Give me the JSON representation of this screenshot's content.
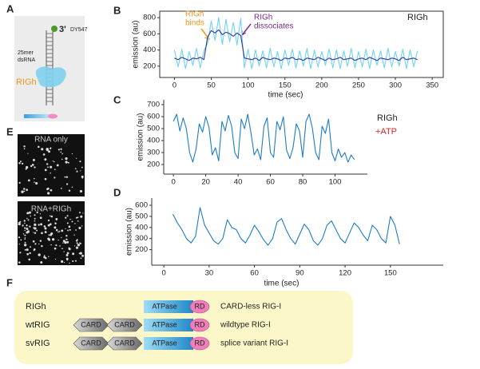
{
  "panel_labels": [
    "A",
    "B",
    "C",
    "D",
    "E",
    "F"
  ],
  "diagram_a": {
    "end": "3'",
    "dye": "DY547",
    "length": "25mer",
    "molecule": "dsRNA",
    "protein": "RIGh"
  },
  "images_e": [
    "RNA only",
    "RNA+RIGh"
  ],
  "constructs_f": [
    {
      "name": "RIGh",
      "domains": [
        "ATPase",
        "RD"
      ],
      "description": "CARD-less RIG-I"
    },
    {
      "name": "wtRIG",
      "domains": [
        "CARD",
        "CARD",
        "ATPase",
        "RD"
      ],
      "description": "wildtype RIG-I"
    },
    {
      "name": "svRIG",
      "domains": [
        "CARD",
        "CARD",
        "ATPase",
        "RD"
      ],
      "description": "splice variant RIG-I"
    }
  ],
  "chart_data": [
    {
      "type": "line",
      "xlabel": "time (sec)",
      "ylabel": "emission (au)",
      "xlim": [
        -20,
        365
      ],
      "ylim": [
        60,
        880
      ],
      "xticks": [
        0,
        50,
        100,
        150,
        200,
        250,
        300,
        350
      ],
      "yticks": [
        200,
        400,
        600,
        800
      ],
      "annotations": [
        {
          "text": [
            "RIGh",
            "binds"
          ],
          "color": "#f0961e"
        },
        {
          "text": [
            "RIGh",
            "dissociates"
          ],
          "color": "#7d2a8c"
        },
        {
          "text": [
            "RIGh"
          ],
          "color": "#222222"
        }
      ],
      "x": [
        0,
        5,
        10,
        15,
        20,
        25,
        30,
        35,
        40,
        45,
        50,
        55,
        60,
        65,
        70,
        75,
        80,
        85,
        90,
        95,
        100,
        105,
        110,
        115,
        120,
        125,
        130,
        135,
        140,
        145,
        150,
        155,
        160,
        165,
        170,
        175,
        180,
        185,
        190,
        195,
        200,
        205,
        210,
        215,
        220,
        225,
        230,
        235,
        240,
        245,
        250,
        255,
        260,
        265,
        270,
        275,
        280,
        285,
        290,
        295,
        300,
        305,
        310,
        315,
        320,
        325,
        330
      ],
      "series": [
        {
          "color": "#6fd3f2",
          "values": [
            400,
            190,
            410,
            170,
            380,
            210,
            420,
            180,
            390,
            480,
            760,
            520,
            800,
            470,
            780,
            500,
            740,
            460,
            790,
            180,
            410,
            170,
            400,
            200,
            390,
            180,
            420,
            190,
            380,
            170,
            400,
            210,
            410,
            180,
            390,
            200,
            420,
            170,
            400,
            190,
            380,
            210,
            410,
            180,
            400,
            170,
            390,
            200,
            420,
            180,
            380,
            190,
            410,
            170,
            400,
            210,
            390,
            180,
            420,
            190,
            380,
            200,
            410,
            170,
            400,
            190,
            390
          ]
        },
        {
          "color": "#2b3a9c",
          "values": [
            300,
            280,
            310,
            290,
            270,
            300,
            290,
            310,
            280,
            560,
            640,
            610,
            650,
            590,
            620,
            600,
            570,
            610,
            580,
            300,
            290,
            280,
            300,
            270,
            310,
            290,
            280,
            300,
            290,
            270,
            300,
            290,
            310,
            280,
            290,
            270,
            300,
            290,
            280,
            310,
            290,
            270,
            300,
            280,
            290,
            310,
            280,
            290,
            300,
            270,
            290,
            300,
            280,
            310,
            290,
            270,
            300,
            290,
            280,
            300,
            290,
            270,
            310,
            280,
            290,
            300,
            280
          ]
        }
      ]
    },
    {
      "type": "line",
      "xlabel": null,
      "ylabel": "emission (au)",
      "xlim": [
        -6,
        120
      ],
      "ylim": [
        120,
        740
      ],
      "xticks": [
        0,
        20,
        40,
        60,
        80,
        100
      ],
      "yticks": [
        200,
        300,
        400,
        500,
        600,
        700
      ],
      "annotations": [
        {
          "text": [
            "RIGh"
          ],
          "color": "#222222"
        },
        {
          "text": [
            "+ATP"
          ],
          "color": "#e0262a"
        }
      ],
      "x": [
        0,
        2,
        4,
        6,
        8,
        10,
        12,
        14,
        16,
        18,
        20,
        22,
        24,
        26,
        28,
        30,
        32,
        34,
        36,
        38,
        40,
        42,
        44,
        46,
        48,
        50,
        52,
        54,
        56,
        58,
        60,
        62,
        64,
        66,
        68,
        70,
        72,
        74,
        76,
        78,
        80,
        82,
        84,
        86,
        88,
        90,
        92,
        94,
        96,
        98,
        100,
        102,
        104,
        106,
        108,
        110,
        112
      ],
      "series": [
        {
          "color": "#1f7cc4",
          "values": [
            560,
            620,
            480,
            590,
            500,
            300,
            220,
            330,
            540,
            470,
            600,
            510,
            280,
            340,
            230,
            560,
            480,
            610,
            520,
            300,
            250,
            580,
            500,
            620,
            460,
            280,
            330,
            240,
            520,
            590,
            300,
            260,
            560,
            490,
            600,
            320,
            250,
            340,
            540,
            480,
            260,
            560,
            620,
            500,
            300,
            240,
            520,
            460,
            580,
            300,
            230,
            330,
            260,
            300,
            220,
            280,
            240
          ]
        }
      ]
    },
    {
      "type": "line",
      "xlabel": "time (sec)",
      "ylabel": "emission (au)",
      "xlim": [
        -8,
        185
      ],
      "ylim": [
        60,
        665
      ],
      "xticks": [
        0,
        30,
        60,
        90,
        120,
        150
      ],
      "yticks": [
        200,
        300,
        400,
        500,
        600
      ],
      "annotations": [],
      "x": [
        6,
        9,
        12,
        15,
        18,
        21,
        24,
        27,
        30,
        33,
        36,
        39,
        42,
        45,
        48,
        51,
        54,
        57,
        60,
        63,
        66,
        69,
        72,
        75,
        78,
        81,
        84,
        87,
        90,
        93,
        96,
        99,
        102,
        105,
        108,
        111,
        114,
        117,
        120,
        123,
        126,
        129,
        132,
        135,
        138,
        141,
        144,
        147,
        150,
        153,
        156
      ],
      "series": [
        {
          "color": "#1f7cc4",
          "values": [
            520,
            440,
            380,
            300,
            260,
            320,
            580,
            420,
            350,
            280,
            250,
            300,
            470,
            400,
            380,
            300,
            260,
            330,
            420,
            360,
            290,
            240,
            300,
            450,
            480,
            380,
            300,
            250,
            340,
            430,
            380,
            280,
            240,
            300,
            420,
            460,
            380,
            300,
            260,
            350,
            440,
            400,
            330,
            280,
            420,
            380,
            300,
            260,
            500,
            420,
            250
          ]
        }
      ]
    }
  ]
}
